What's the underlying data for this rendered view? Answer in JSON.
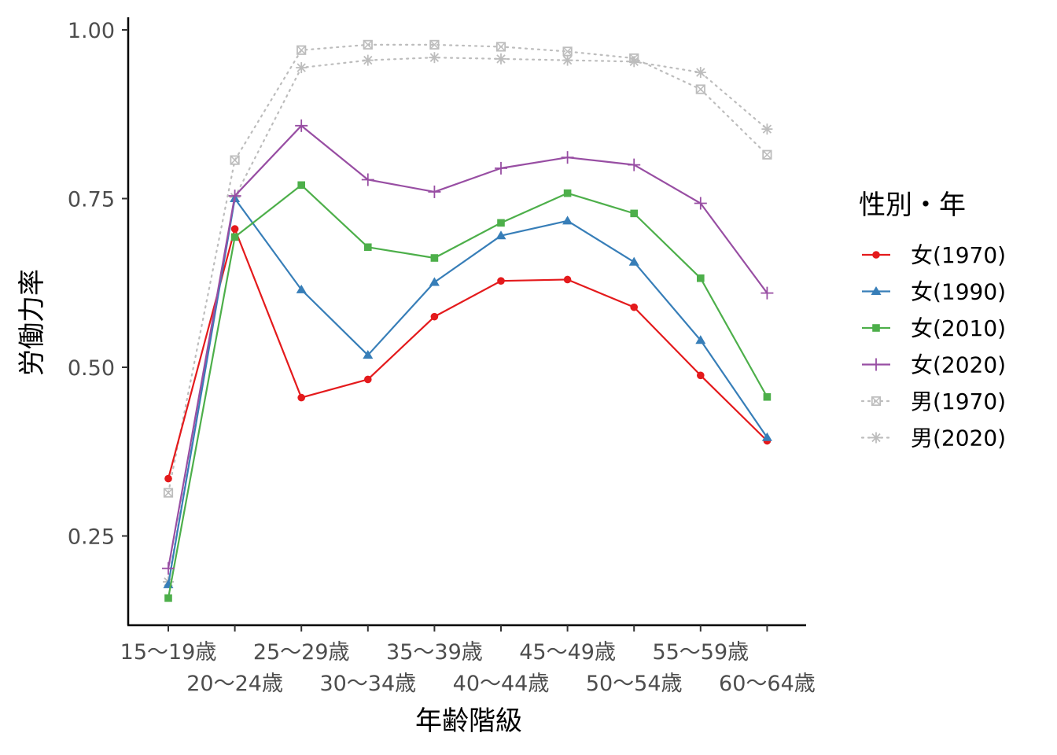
{
  "chart_data": {
    "type": "line",
    "xlabel": "年齢階級",
    "ylabel": "労働力率",
    "categories": [
      "15〜19歳",
      "20〜24歳",
      "25〜29歳",
      "30〜34歳",
      "35〜39歳",
      "40〜44歳",
      "45〜49歳",
      "50〜54歳",
      "55〜59歳",
      "60〜64歳"
    ],
    "ylim": [
      0.12,
      1.0
    ],
    "yticks": [
      0.25,
      0.5,
      0.75,
      1.0
    ],
    "ytick_labels": [
      "0.25",
      "0.50",
      "0.75",
      "1.00"
    ],
    "grid": false,
    "legend": {
      "title": "性別・年",
      "position": "right"
    },
    "series": [
      {
        "name": "女(1970)",
        "color": "#E41A1C",
        "marker": "circle",
        "dash": "solid",
        "values": [
          0.335,
          0.705,
          0.455,
          0.482,
          0.575,
          0.628,
          0.63,
          0.589,
          0.488,
          0.391
        ]
      },
      {
        "name": "女(1990)",
        "color": "#377EB8",
        "marker": "triangle",
        "dash": "solid",
        "values": [
          0.178,
          0.75,
          0.615,
          0.518,
          0.626,
          0.695,
          0.717,
          0.656,
          0.54,
          0.396
        ]
      },
      {
        "name": "女(2010)",
        "color": "#4DAF4A",
        "marker": "square",
        "dash": "solid",
        "values": [
          0.158,
          0.693,
          0.77,
          0.678,
          0.662,
          0.714,
          0.758,
          0.728,
          0.632,
          0.456
        ]
      },
      {
        "name": "女(2020)",
        "color": "#984EA3",
        "marker": "plus",
        "dash": "solid",
        "values": [
          0.202,
          0.754,
          0.858,
          0.778,
          0.76,
          0.795,
          0.811,
          0.8,
          0.743,
          0.61
        ]
      },
      {
        "name": "男(1970)",
        "color": "#BDBDBD",
        "marker": "boxcross",
        "dash": "dotted",
        "values": [
          0.314,
          0.807,
          0.97,
          0.978,
          0.978,
          0.975,
          0.968,
          0.958,
          0.912,
          0.815
        ]
      },
      {
        "name": "男(2020)",
        "color": "#BDBDBD",
        "marker": "asterisk",
        "dash": "dotted",
        "values": [
          0.182,
          0.752,
          0.944,
          0.955,
          0.959,
          0.957,
          0.955,
          0.953,
          0.937,
          0.853
        ]
      }
    ]
  }
}
